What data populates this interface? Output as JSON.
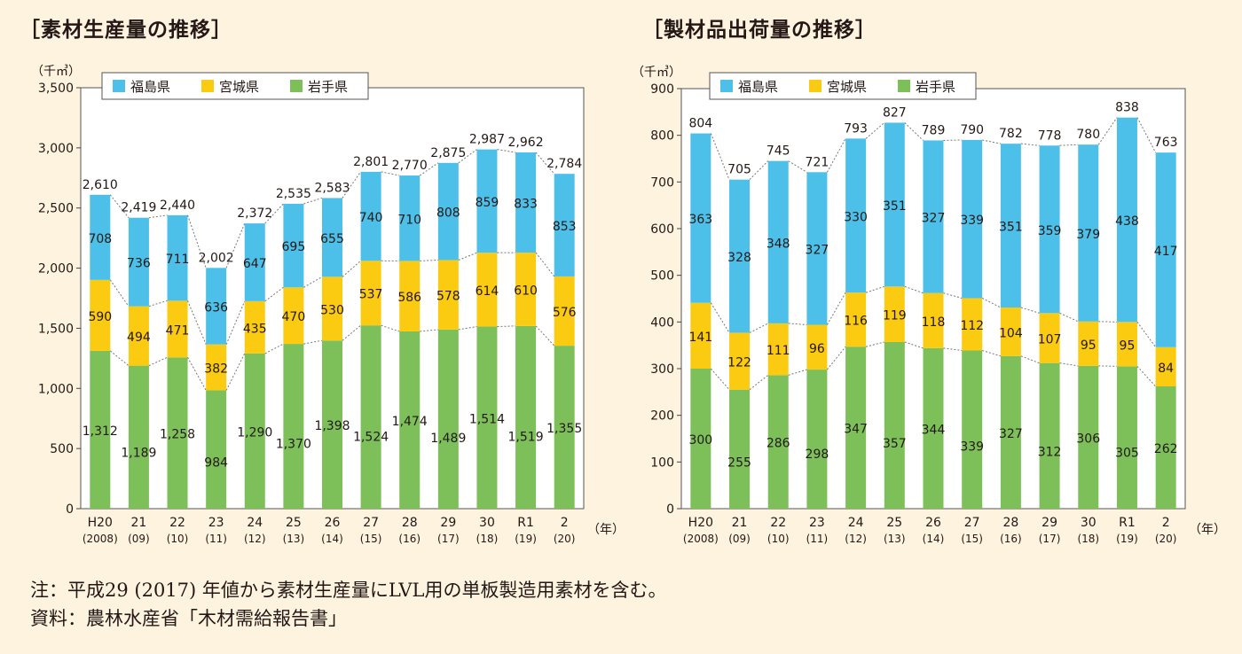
{
  "titles": {
    "left": "［素材生産量の推移］",
    "right": "［製材品出荷量の推移］"
  },
  "notes": {
    "note": "注：平成29 (2017) 年値から素材生産量にLVL用の単板製造用素材を含む。",
    "source": "資料：農林水産省「木材需給報告書」"
  },
  "colors": {
    "fukushima": "#4dc0ea",
    "miyagi": "#fbcb12",
    "iwate": "#7dc05a",
    "text": "#231815",
    "dash": "#777777"
  },
  "chart_data": [
    {
      "type": "bar",
      "stacked": true,
      "title": "［素材生産量の推移］",
      "unit_label": "（千㎥）",
      "year_label": "（年）",
      "categories": [
        "H20",
        "21",
        "22",
        "23",
        "24",
        "25",
        "26",
        "27",
        "28",
        "29",
        "30",
        "R1",
        "2"
      ],
      "categories_sub": [
        "(2008)",
        "(09)",
        "(10)",
        "(11)",
        "(12)",
        "(13)",
        "(14)",
        "(15)",
        "(16)",
        "(17)",
        "(18)",
        "(19)",
        "(20)"
      ],
      "series": [
        {
          "name": "岩手県",
          "key": "iwate",
          "values": [
            1312,
            1189,
            1258,
            984,
            1290,
            1370,
            1398,
            1524,
            1474,
            1489,
            1514,
            1519,
            1355
          ],
          "labels": [
            "1,312",
            "1,189",
            "1,258",
            "984",
            "1,290",
            "1,370",
            "1,398",
            "1,524",
            "1,474",
            "1,489",
            "1,514",
            "1,519",
            "1,355"
          ]
        },
        {
          "name": "宮城県",
          "key": "miyagi",
          "values": [
            590,
            494,
            471,
            382,
            435,
            470,
            530,
            537,
            586,
            578,
            614,
            610,
            576
          ],
          "labels": [
            "590",
            "494",
            "471",
            "382",
            "435",
            "470",
            "530",
            "537",
            "586",
            "578",
            "614",
            "610",
            "576"
          ]
        },
        {
          "name": "福島県",
          "key": "fukushima",
          "values": [
            708,
            736,
            711,
            636,
            647,
            695,
            655,
            740,
            710,
            808,
            859,
            833,
            853
          ],
          "labels": [
            "708",
            "736",
            "711",
            "636",
            "647",
            "695",
            "655",
            "740",
            "710",
            "808",
            "859",
            "833",
            "853"
          ]
        }
      ],
      "totals": [
        2610,
        2419,
        2440,
        2002,
        2372,
        2535,
        2583,
        2801,
        2770,
        2875,
        2987,
        2962,
        2784
      ],
      "total_labels": [
        "2,610",
        "2,419",
        "2,440",
        "2,002",
        "2,372",
        "2,535",
        "2,583",
        "2,801",
        "2,770",
        "2,875",
        "2,987",
        "2,962",
        "2,784"
      ],
      "ylim": [
        0,
        3500
      ],
      "yticks": [
        0,
        500,
        1000,
        1500,
        2000,
        2500,
        3000,
        3500
      ],
      "ytick_labels": [
        "0",
        "500",
        "1,000",
        "1,500",
        "2,000",
        "2,500",
        "3,000",
        "3,500"
      ],
      "legend": [
        "福島県",
        "宮城県",
        "岩手県"
      ],
      "legend_position": "top-left"
    },
    {
      "type": "bar",
      "stacked": true,
      "title": "［製材品出荷量の推移］",
      "unit_label": "（千㎥）",
      "year_label": "（年）",
      "categories": [
        "H20",
        "21",
        "22",
        "23",
        "24",
        "25",
        "26",
        "27",
        "28",
        "29",
        "30",
        "R1",
        "2"
      ],
      "categories_sub": [
        "(2008)",
        "(09)",
        "(10)",
        "(11)",
        "(12)",
        "(13)",
        "(14)",
        "(15)",
        "(16)",
        "(17)",
        "(18)",
        "(19)",
        "(20)"
      ],
      "series": [
        {
          "name": "岩手県",
          "key": "iwate",
          "values": [
            300,
            255,
            286,
            298,
            347,
            357,
            344,
            339,
            327,
            312,
            306,
            305,
            262
          ],
          "labels": [
            "300",
            "255",
            "286",
            "298",
            "347",
            "357",
            "344",
            "339",
            "327",
            "312",
            "306",
            "305",
            "262"
          ]
        },
        {
          "name": "宮城県",
          "key": "miyagi",
          "values": [
            141,
            122,
            111,
            96,
            116,
            119,
            118,
            112,
            104,
            107,
            95,
            95,
            84
          ],
          "labels": [
            "141",
            "122",
            "111",
            "96",
            "116",
            "119",
            "118",
            "112",
            "104",
            "107",
            "95",
            "95",
            "84"
          ]
        },
        {
          "name": "福島県",
          "key": "fukushima",
          "values": [
            363,
            328,
            348,
            327,
            330,
            351,
            327,
            339,
            351,
            359,
            379,
            438,
            417
          ],
          "labels": [
            "363",
            "328",
            "348",
            "327",
            "330",
            "351",
            "327",
            "339",
            "351",
            "359",
            "379",
            "438",
            "417"
          ]
        }
      ],
      "totals": [
        804,
        705,
        745,
        721,
        793,
        827,
        789,
        790,
        782,
        778,
        780,
        838,
        763
      ],
      "total_labels": [
        "804",
        "705",
        "745",
        "721",
        "793",
        "827",
        "789",
        "790",
        "782",
        "778",
        "780",
        "838",
        "763"
      ],
      "ylim": [
        0,
        900
      ],
      "yticks": [
        0,
        100,
        200,
        300,
        400,
        500,
        600,
        700,
        800,
        900
      ],
      "ytick_labels": [
        "0",
        "100",
        "200",
        "300",
        "400",
        "500",
        "600",
        "700",
        "800",
        "900"
      ],
      "legend": [
        "福島県",
        "宮城県",
        "岩手県"
      ],
      "legend_position": "top-left"
    }
  ]
}
